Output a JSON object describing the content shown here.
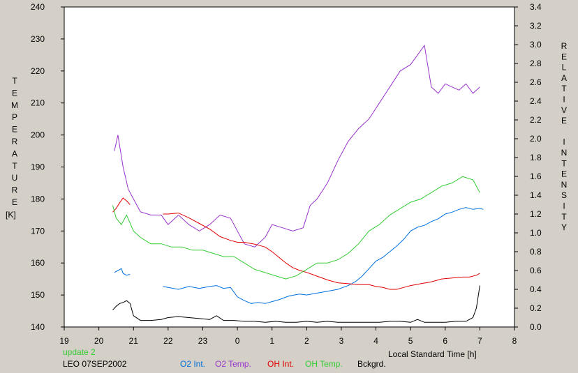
{
  "chart_data": {
    "type": "line",
    "title": "",
    "xlabel": "Local Standard Time [h]",
    "ylabel_left": "TEMPERATURE",
    "ylabel_left_unit": "[K]",
    "ylabel_right": "RELATIVE INTENSITY",
    "x_ticks": [
      "19",
      "20",
      "21",
      "22",
      "23",
      "0",
      "1",
      "2",
      "3",
      "4",
      "5",
      "6",
      "7",
      "8"
    ],
    "xlim": [
      19,
      32
    ],
    "ylim_left": [
      140,
      240
    ],
    "ylim_right": [
      0.0,
      3.4
    ],
    "y_ticks_left": [
      140,
      150,
      160,
      170,
      180,
      190,
      200,
      210,
      220,
      230,
      240
    ],
    "y_ticks_right": [
      "0.0",
      "0.2",
      "0.4",
      "0.6",
      "0.8",
      "1.0",
      "1.2",
      "1.4",
      "1.6",
      "1.8",
      "2.0",
      "2.2",
      "2.4",
      "2.6",
      "2.8",
      "3.0",
      "3.2",
      "3.4"
    ],
    "grid": false,
    "legend_placement": "bottom",
    "status_left": "update 2",
    "station_date": "LEO 07SEP2002",
    "series": [
      {
        "name": "O2 Int.",
        "axis": "right",
        "color": "#0070e0",
        "segments": [
          [
            [
              20.45,
              0.58
            ],
            [
              20.55,
              0.6
            ],
            [
              20.65,
              0.62
            ],
            [
              20.7,
              0.57
            ],
            [
              20.8,
              0.55
            ],
            [
              20.9,
              0.56
            ]
          ],
          [
            [
              21.85,
              0.43
            ],
            [
              22.0,
              0.42
            ],
            [
              22.3,
              0.4
            ],
            [
              22.6,
              0.43
            ],
            [
              22.9,
              0.41
            ],
            [
              23.2,
              0.43
            ],
            [
              23.4,
              0.44
            ],
            [
              23.6,
              0.41
            ],
            [
              23.8,
              0.42
            ],
            [
              24.0,
              0.32
            ],
            [
              24.2,
              0.28
            ],
            [
              24.4,
              0.25
            ],
            [
              24.6,
              0.26
            ],
            [
              24.8,
              0.25
            ],
            [
              25.0,
              0.27
            ],
            [
              25.2,
              0.29
            ],
            [
              25.5,
              0.33
            ],
            [
              25.8,
              0.35
            ],
            [
              26.0,
              0.34
            ],
            [
              26.3,
              0.36
            ],
            [
              26.6,
              0.38
            ],
            [
              26.9,
              0.4
            ],
            [
              27.2,
              0.44
            ],
            [
              27.4,
              0.48
            ],
            [
              27.6,
              0.54
            ],
            [
              27.8,
              0.62
            ],
            [
              28.0,
              0.7
            ],
            [
              28.2,
              0.74
            ],
            [
              28.4,
              0.8
            ],
            [
              28.6,
              0.86
            ],
            [
              28.8,
              0.93
            ],
            [
              29.0,
              1.02
            ],
            [
              29.2,
              1.06
            ],
            [
              29.4,
              1.08
            ],
            [
              29.6,
              1.12
            ],
            [
              29.8,
              1.15
            ],
            [
              30.0,
              1.2
            ],
            [
              30.2,
              1.22
            ],
            [
              30.4,
              1.25
            ],
            [
              30.6,
              1.27
            ],
            [
              30.8,
              1.25
            ],
            [
              31.0,
              1.26
            ],
            [
              31.1,
              1.25
            ]
          ]
        ]
      },
      {
        "name": "O2 Temp.",
        "axis": "left",
        "color": "#9933cc",
        "segments": [
          [
            [
              20.45,
              195
            ],
            [
              20.55,
              200
            ],
            [
              20.7,
              190
            ],
            [
              20.85,
              183
            ],
            [
              21.0,
              180
            ],
            [
              21.2,
              176
            ],
            [
              21.5,
              175
            ],
            [
              21.8,
              175
            ],
            [
              22.0,
              172
            ],
            [
              22.3,
              175
            ],
            [
              22.6,
              172
            ],
            [
              22.9,
              170
            ],
            [
              23.2,
              172
            ],
            [
              23.5,
              175
            ],
            [
              23.8,
              174
            ],
            [
              24.0,
              170
            ],
            [
              24.2,
              166
            ],
            [
              24.5,
              165
            ],
            [
              24.8,
              168
            ],
            [
              25.0,
              172
            ],
            [
              25.3,
              171
            ],
            [
              25.6,
              170
            ],
            [
              25.9,
              171
            ],
            [
              26.1,
              178
            ],
            [
              26.3,
              180
            ],
            [
              26.6,
              185
            ],
            [
              26.9,
              192
            ],
            [
              27.2,
              198
            ],
            [
              27.5,
              202
            ],
            [
              27.8,
              205
            ],
            [
              28.1,
              210
            ],
            [
              28.4,
              215
            ],
            [
              28.7,
              220
            ],
            [
              29.0,
              222
            ],
            [
              29.2,
              225
            ],
            [
              29.4,
              228
            ],
            [
              29.6,
              215
            ],
            [
              29.8,
              213
            ],
            [
              30.0,
              216
            ],
            [
              30.2,
              215
            ],
            [
              30.4,
              214
            ],
            [
              30.6,
              216
            ],
            [
              30.8,
              213
            ],
            [
              31.0,
              215
            ]
          ]
        ]
      },
      {
        "name": "OH Int.",
        "axis": "right",
        "color": "#e00000",
        "segments": [
          [
            [
              20.4,
              1.22
            ],
            [
              20.5,
              1.26
            ],
            [
              20.6,
              1.32
            ],
            [
              20.7,
              1.37
            ],
            [
              20.8,
              1.34
            ],
            [
              20.9,
              1.3
            ]
          ],
          [
            [
              21.85,
              1.2
            ],
            [
              22.0,
              1.2
            ],
            [
              22.3,
              1.21
            ],
            [
              22.6,
              1.16
            ],
            [
              22.9,
              1.1
            ],
            [
              23.2,
              1.04
            ],
            [
              23.5,
              0.96
            ],
            [
              23.8,
              0.92
            ],
            [
              24.0,
              0.9
            ],
            [
              24.2,
              0.9
            ],
            [
              24.5,
              0.88
            ],
            [
              24.8,
              0.85
            ],
            [
              25.0,
              0.8
            ],
            [
              25.2,
              0.74
            ],
            [
              25.4,
              0.68
            ],
            [
              25.6,
              0.63
            ],
            [
              25.8,
              0.6
            ],
            [
              26.0,
              0.58
            ],
            [
              26.3,
              0.54
            ],
            [
              26.6,
              0.5
            ],
            [
              26.9,
              0.47
            ],
            [
              27.2,
              0.46
            ],
            [
              27.5,
              0.45
            ],
            [
              27.8,
              0.45
            ],
            [
              28.0,
              0.43
            ],
            [
              28.2,
              0.42
            ],
            [
              28.4,
              0.4
            ],
            [
              28.6,
              0.4
            ],
            [
              28.8,
              0.42
            ],
            [
              29.0,
              0.44
            ],
            [
              29.3,
              0.46
            ],
            [
              29.6,
              0.48
            ],
            [
              29.9,
              0.51
            ],
            [
              30.2,
              0.52
            ],
            [
              30.5,
              0.53
            ],
            [
              30.7,
              0.53
            ],
            [
              30.9,
              0.55
            ],
            [
              31.0,
              0.57
            ]
          ]
        ]
      },
      {
        "name": "OH Temp.",
        "axis": "left",
        "color": "#33cc33",
        "segments": [
          [
            [
              20.4,
              178
            ],
            [
              20.5,
              174
            ],
            [
              20.65,
              172
            ],
            [
              20.8,
              175
            ],
            [
              21.0,
              170
            ],
            [
              21.2,
              168
            ],
            [
              21.5,
              166
            ],
            [
              21.8,
              166
            ],
            [
              22.1,
              165
            ],
            [
              22.4,
              165
            ],
            [
              22.7,
              164
            ],
            [
              23.0,
              164
            ],
            [
              23.3,
              163
            ],
            [
              23.6,
              162
            ],
            [
              23.9,
              162
            ],
            [
              24.2,
              160
            ],
            [
              24.5,
              158
            ],
            [
              24.8,
              157
            ],
            [
              25.1,
              156
            ],
            [
              25.4,
              155
            ],
            [
              25.7,
              156
            ],
            [
              26.0,
              158
            ],
            [
              26.3,
              160
            ],
            [
              26.6,
              160
            ],
            [
              26.9,
              161
            ],
            [
              27.2,
              163
            ],
            [
              27.5,
              166
            ],
            [
              27.8,
              170
            ],
            [
              28.1,
              172
            ],
            [
              28.4,
              175
            ],
            [
              28.7,
              177
            ],
            [
              29.0,
              179
            ],
            [
              29.3,
              180
            ],
            [
              29.6,
              182
            ],
            [
              29.9,
              184
            ],
            [
              30.2,
              185
            ],
            [
              30.5,
              187
            ],
            [
              30.8,
              186
            ],
            [
              31.0,
              182
            ]
          ]
        ]
      },
      {
        "name": "Bckgrd.",
        "axis": "right",
        "color": "#000000",
        "segments": [
          [
            [
              20.4,
              0.18
            ],
            [
              20.5,
              0.22
            ],
            [
              20.6,
              0.25
            ],
            [
              20.7,
              0.26
            ],
            [
              20.8,
              0.28
            ],
            [
              20.9,
              0.25
            ],
            [
              21.0,
              0.12
            ],
            [
              21.2,
              0.07
            ],
            [
              21.5,
              0.07
            ],
            [
              21.8,
              0.08
            ],
            [
              22.0,
              0.1
            ],
            [
              22.3,
              0.11
            ],
            [
              22.6,
              0.1
            ],
            [
              22.9,
              0.09
            ],
            [
              23.2,
              0.08
            ],
            [
              23.4,
              0.12
            ],
            [
              23.6,
              0.07
            ],
            [
              23.9,
              0.07
            ],
            [
              24.2,
              0.06
            ],
            [
              24.5,
              0.06
            ],
            [
              24.8,
              0.05
            ],
            [
              25.1,
              0.06
            ],
            [
              25.4,
              0.05
            ],
            [
              25.7,
              0.05
            ],
            [
              26.0,
              0.06
            ],
            [
              26.3,
              0.05
            ],
            [
              26.6,
              0.06
            ],
            [
              26.9,
              0.05
            ],
            [
              27.2,
              0.05
            ],
            [
              27.5,
              0.05
            ],
            [
              27.8,
              0.05
            ],
            [
              28.1,
              0.05
            ],
            [
              28.4,
              0.06
            ],
            [
              28.7,
              0.06
            ],
            [
              29.0,
              0.05
            ],
            [
              29.2,
              0.08
            ],
            [
              29.4,
              0.05
            ],
            [
              29.7,
              0.05
            ],
            [
              30.0,
              0.05
            ],
            [
              30.3,
              0.06
            ],
            [
              30.6,
              0.06
            ],
            [
              30.8,
              0.1
            ],
            [
              30.9,
              0.2
            ],
            [
              31.0,
              0.44
            ]
          ]
        ]
      }
    ]
  }
}
